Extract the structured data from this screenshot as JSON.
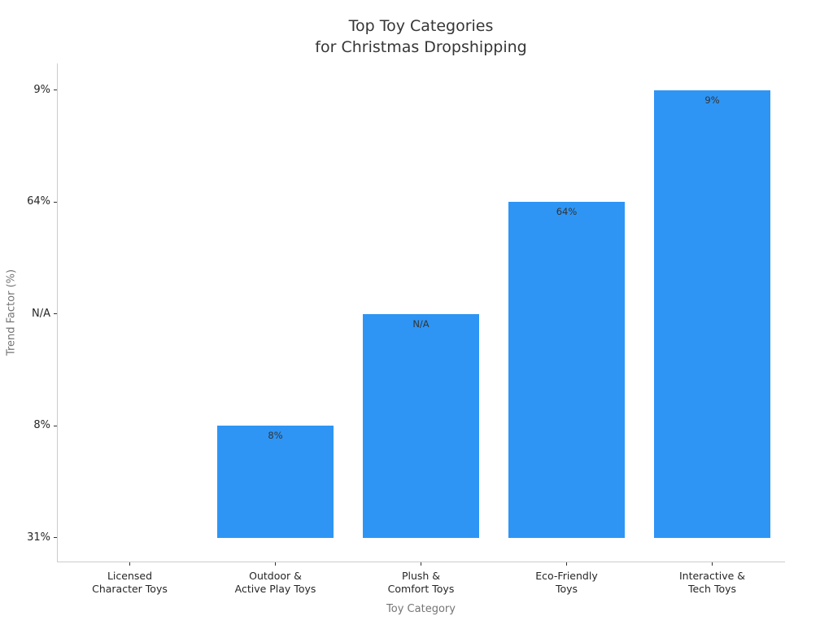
{
  "chart_data": {
    "type": "bar",
    "title": "Top Toy Categories\nfor Christmas Dropshipping",
    "xlabel": "Toy Category",
    "ylabel": "Trend Factor (%)",
    "categories": [
      "Licensed\nCharacter Toys",
      "Outdoor &\nActive Play Toys",
      "Plush &\nComfort Toys",
      "Eco-Friendly\nToys",
      "Interactive &\nTech Toys"
    ],
    "values": [
      "31%",
      "8%",
      "N/A",
      "64%",
      "9%"
    ],
    "y_tick_labels_bottom_to_top": [
      "31%",
      "8%",
      "N/A",
      "64%",
      "9%"
    ],
    "axis_note": "categorical y-axis: each bar's height equals the index of its value within the y tick labels; first bar has zero height",
    "grid": "off",
    "legend": "none",
    "colors": {
      "bar": "#2E95F5",
      "spine": "#cccccc",
      "tick_mark": "#333333",
      "tick_label": "#262626",
      "axis_label": "#757575",
      "title": "#363636",
      "bar_label": "#333333",
      "background": "#ffffff"
    }
  }
}
